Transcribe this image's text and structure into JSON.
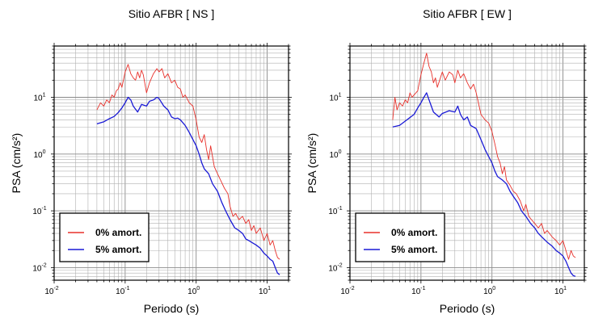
{
  "chart_data": [
    {
      "type": "line",
      "title": "Sitio AFBR [ NS ]",
      "xlabel": "Periodo (s)",
      "ylabel": "PSA (cm/s²)",
      "xscale": "log",
      "yscale": "log",
      "xlim": [
        0.01,
        20
      ],
      "ylim": [
        0.006,
        80
      ],
      "x_ticks": [
        {
          "value": 0.01,
          "base": "10",
          "exp": "-2"
        },
        {
          "value": 0.1,
          "base": "10",
          "exp": "-1"
        },
        {
          "value": 1,
          "base": "10",
          "exp": "0"
        },
        {
          "value": 10,
          "base": "10",
          "exp": "1"
        }
      ],
      "y_ticks": [
        {
          "value": 0.01,
          "base": "10",
          "exp": "-2"
        },
        {
          "value": 0.1,
          "base": "10",
          "exp": "-1"
        },
        {
          "value": 1,
          "base": "10",
          "exp": "0"
        },
        {
          "value": 10,
          "base": "10",
          "exp": "1"
        }
      ],
      "grid": true,
      "legend_position": "bottom-left",
      "series": [
        {
          "name": "0% amort.",
          "color": "#e8302a",
          "points": [
            [
              0.04,
              6
            ],
            [
              0.045,
              8
            ],
            [
              0.05,
              7
            ],
            [
              0.055,
              9
            ],
            [
              0.06,
              8
            ],
            [
              0.065,
              11
            ],
            [
              0.07,
              10
            ],
            [
              0.075,
              13
            ],
            [
              0.08,
              14
            ],
            [
              0.085,
              18
            ],
            [
              0.09,
              15
            ],
            [
              0.1,
              28
            ],
            [
              0.11,
              38
            ],
            [
              0.12,
              26
            ],
            [
              0.13,
              22
            ],
            [
              0.14,
              20
            ],
            [
              0.15,
              28
            ],
            [
              0.16,
              22
            ],
            [
              0.17,
              30
            ],
            [
              0.18,
              25
            ],
            [
              0.2,
              12
            ],
            [
              0.22,
              18
            ],
            [
              0.25,
              26
            ],
            [
              0.28,
              32
            ],
            [
              0.3,
              28
            ],
            [
              0.33,
              32
            ],
            [
              0.36,
              22
            ],
            [
              0.4,
              26
            ],
            [
              0.45,
              18
            ],
            [
              0.5,
              20
            ],
            [
              0.55,
              15
            ],
            [
              0.6,
              14
            ],
            [
              0.65,
              10
            ],
            [
              0.7,
              11
            ],
            [
              0.8,
              8
            ],
            [
              0.9,
              7
            ],
            [
              1.0,
              4
            ],
            [
              1.1,
              2
            ],
            [
              1.2,
              1.6
            ],
            [
              1.3,
              2.2
            ],
            [
              1.4,
              1.2
            ],
            [
              1.5,
              0.8
            ],
            [
              1.6,
              1.4
            ],
            [
              1.7,
              0.9
            ],
            [
              1.8,
              0.6
            ],
            [
              2.0,
              0.45
            ],
            [
              2.2,
              0.35
            ],
            [
              2.5,
              0.25
            ],
            [
              2.8,
              0.2
            ],
            [
              3.0,
              0.12
            ],
            [
              3.3,
              0.08
            ],
            [
              3.6,
              0.09
            ],
            [
              4.0,
              0.07
            ],
            [
              4.5,
              0.08
            ],
            [
              5.0,
              0.06
            ],
            [
              5.5,
              0.07
            ],
            [
              6.0,
              0.045
            ],
            [
              6.5,
              0.055
            ],
            [
              7.0,
              0.04
            ],
            [
              8.0,
              0.05
            ],
            [
              9.0,
              0.03
            ],
            [
              10.0,
              0.04
            ],
            [
              11.0,
              0.025
            ],
            [
              12.0,
              0.03
            ],
            [
              13.0,
              0.02
            ],
            [
              14.0,
              0.015
            ],
            [
              15.0,
              0.014
            ]
          ]
        },
        {
          "name": "5% amort.",
          "color": "#1a1ad6",
          "points": [
            [
              0.04,
              3.4
            ],
            [
              0.05,
              3.7
            ],
            [
              0.06,
              4.2
            ],
            [
              0.07,
              4.6
            ],
            [
              0.08,
              5.4
            ],
            [
              0.09,
              6.5
            ],
            [
              0.1,
              8
            ],
            [
              0.11,
              10
            ],
            [
              0.12,
              9
            ],
            [
              0.13,
              7
            ],
            [
              0.15,
              5.5
            ],
            [
              0.17,
              7.5
            ],
            [
              0.2,
              7
            ],
            [
              0.22,
              8.5
            ],
            [
              0.25,
              9
            ],
            [
              0.28,
              10
            ],
            [
              0.3,
              9.5
            ],
            [
              0.35,
              7
            ],
            [
              0.4,
              6
            ],
            [
              0.45,
              4.5
            ],
            [
              0.5,
              4.2
            ],
            [
              0.55,
              4.3
            ],
            [
              0.6,
              4
            ],
            [
              0.7,
              3.2
            ],
            [
              0.8,
              2.4
            ],
            [
              0.9,
              1.8
            ],
            [
              1.0,
              1.4
            ],
            [
              1.1,
              1.0
            ],
            [
              1.2,
              0.7
            ],
            [
              1.3,
              0.55
            ],
            [
              1.5,
              0.45
            ],
            [
              1.7,
              0.3
            ],
            [
              2.0,
              0.22
            ],
            [
              2.3,
              0.14
            ],
            [
              2.6,
              0.1
            ],
            [
              3.0,
              0.07
            ],
            [
              3.5,
              0.05
            ],
            [
              4.0,
              0.045
            ],
            [
              4.5,
              0.04
            ],
            [
              5.0,
              0.032
            ],
            [
              5.5,
              0.03
            ],
            [
              6.0,
              0.028
            ],
            [
              7.0,
              0.025
            ],
            [
              8.0,
              0.022
            ],
            [
              9.0,
              0.018
            ],
            [
              10.0,
              0.016
            ],
            [
              11.0,
              0.014
            ],
            [
              12.0,
              0.013
            ],
            [
              13.0,
              0.01
            ],
            [
              14.0,
              0.008
            ],
            [
              15.0,
              0.0075
            ]
          ]
        }
      ]
    },
    {
      "type": "line",
      "title": "Sitio AFBR [ EW ]",
      "xlabel": "Periodo (s)",
      "ylabel": "PSA (cm/s²)",
      "xscale": "log",
      "yscale": "log",
      "xlim": [
        0.01,
        20
      ],
      "ylim": [
        0.006,
        80
      ],
      "x_ticks": [
        {
          "value": 0.01,
          "base": "10",
          "exp": "-2"
        },
        {
          "value": 0.1,
          "base": "10",
          "exp": "-1"
        },
        {
          "value": 1,
          "base": "10",
          "exp": "0"
        },
        {
          "value": 10,
          "base": "10",
          "exp": "1"
        }
      ],
      "y_ticks": [
        {
          "value": 0.01,
          "base": "10",
          "exp": "-2"
        },
        {
          "value": 0.1,
          "base": "10",
          "exp": "-1"
        },
        {
          "value": 1,
          "base": "10",
          "exp": "0"
        },
        {
          "value": 10,
          "base": "10",
          "exp": "1"
        }
      ],
      "grid": true,
      "legend_position": "bottom-left",
      "series": [
        {
          "name": "0% amort.",
          "color": "#e8302a",
          "points": [
            [
              0.04,
              4
            ],
            [
              0.043,
              10
            ],
            [
              0.046,
              6
            ],
            [
              0.05,
              8
            ],
            [
              0.055,
              7
            ],
            [
              0.06,
              9
            ],
            [
              0.065,
              8
            ],
            [
              0.07,
              12
            ],
            [
              0.075,
              10
            ],
            [
              0.08,
              11
            ],
            [
              0.09,
              13
            ],
            [
              0.1,
              25
            ],
            [
              0.11,
              40
            ],
            [
              0.12,
              60
            ],
            [
              0.13,
              35
            ],
            [
              0.14,
              28
            ],
            [
              0.15,
              18
            ],
            [
              0.16,
              22
            ],
            [
              0.17,
              15
            ],
            [
              0.2,
              28
            ],
            [
              0.22,
              20
            ],
            [
              0.25,
              28
            ],
            [
              0.28,
              25
            ],
            [
              0.3,
              18
            ],
            [
              0.33,
              30
            ],
            [
              0.36,
              22
            ],
            [
              0.4,
              26
            ],
            [
              0.45,
              18
            ],
            [
              0.5,
              14
            ],
            [
              0.55,
              17
            ],
            [
              0.6,
              12
            ],
            [
              0.7,
              5
            ],
            [
              0.8,
              4
            ],
            [
              0.9,
              3.5
            ],
            [
              1.0,
              2.5
            ],
            [
              1.1,
              1.5
            ],
            [
              1.2,
              0.9
            ],
            [
              1.3,
              0.7
            ],
            [
              1.4,
              0.45
            ],
            [
              1.5,
              0.6
            ],
            [
              1.6,
              0.35
            ],
            [
              1.8,
              0.28
            ],
            [
              2.0,
              0.22
            ],
            [
              2.2,
              0.2
            ],
            [
              2.5,
              0.15
            ],
            [
              2.8,
              0.1
            ],
            [
              3.0,
              0.13
            ],
            [
              3.3,
              0.08
            ],
            [
              3.6,
              0.07
            ],
            [
              4.0,
              0.06
            ],
            [
              4.5,
              0.05
            ],
            [
              5.0,
              0.06
            ],
            [
              5.5,
              0.04
            ],
            [
              6.0,
              0.045
            ],
            [
              7.0,
              0.035
            ],
            [
              8.0,
              0.03
            ],
            [
              9.0,
              0.025
            ],
            [
              10.0,
              0.03
            ],
            [
              11.0,
              0.02
            ],
            [
              12.0,
              0.014
            ],
            [
              13.0,
              0.02
            ],
            [
              14.0,
              0.016
            ],
            [
              15.0,
              0.015
            ]
          ]
        },
        {
          "name": "5% amort.",
          "color": "#1a1ad6",
          "points": [
            [
              0.04,
              3.0
            ],
            [
              0.05,
              3.2
            ],
            [
              0.06,
              3.8
            ],
            [
              0.07,
              4.4
            ],
            [
              0.08,
              5.0
            ],
            [
              0.09,
              6.5
            ],
            [
              0.1,
              8
            ],
            [
              0.11,
              10
            ],
            [
              0.12,
              12
            ],
            [
              0.13,
              9
            ],
            [
              0.15,
              5.5
            ],
            [
              0.18,
              4.5
            ],
            [
              0.2,
              5.2
            ],
            [
              0.25,
              5.8
            ],
            [
              0.3,
              5.5
            ],
            [
              0.33,
              7
            ],
            [
              0.36,
              5
            ],
            [
              0.4,
              4
            ],
            [
              0.45,
              4.5
            ],
            [
              0.5,
              3.2
            ],
            [
              0.6,
              2.8
            ],
            [
              0.7,
              1.8
            ],
            [
              0.8,
              1.2
            ],
            [
              0.9,
              0.9
            ],
            [
              1.0,
              0.7
            ],
            [
              1.1,
              0.5
            ],
            [
              1.2,
              0.4
            ],
            [
              1.4,
              0.35
            ],
            [
              1.6,
              0.3
            ],
            [
              1.8,
              0.22
            ],
            [
              2.0,
              0.18
            ],
            [
              2.3,
              0.14
            ],
            [
              2.6,
              0.1
            ],
            [
              3.0,
              0.08
            ],
            [
              3.5,
              0.06
            ],
            [
              4.0,
              0.05
            ],
            [
              4.5,
              0.04
            ],
            [
              5.0,
              0.035
            ],
            [
              6.0,
              0.028
            ],
            [
              7.0,
              0.024
            ],
            [
              8.0,
              0.02
            ],
            [
              9.0,
              0.018
            ],
            [
              10.0,
              0.016
            ],
            [
              11.0,
              0.013
            ],
            [
              12.0,
              0.01
            ],
            [
              13.0,
              0.008
            ],
            [
              14.0,
              0.0072
            ],
            [
              15.0,
              0.007
            ]
          ]
        }
      ]
    }
  ]
}
